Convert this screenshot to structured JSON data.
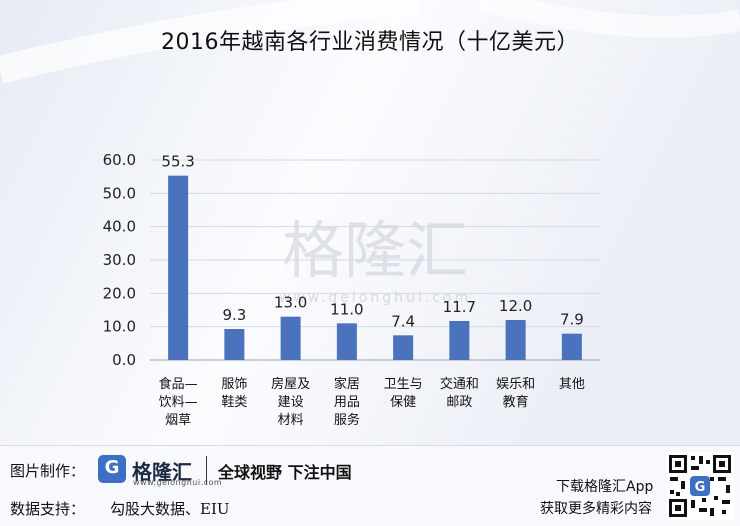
{
  "chart_data": {
    "type": "bar",
    "title": "2016年越南各行业消费情况（十亿美元）",
    "categories": [
      "食品—饮料—烟草",
      "服饰鞋类",
      "房屋及建设材料",
      "家居用品服务",
      "卫生与保健",
      "交通和邮政",
      "娱乐和教育",
      "其他"
    ],
    "category_lines": [
      [
        "食品—",
        "饮料—",
        "烟草"
      ],
      [
        "服饰",
        "鞋类"
      ],
      [
        "房屋及",
        "建设",
        "材料"
      ],
      [
        "家居",
        "用品",
        "服务"
      ],
      [
        "卫生与",
        "保健"
      ],
      [
        "交通和",
        "邮政"
      ],
      [
        "娱乐和",
        "教育"
      ],
      [
        "其他"
      ]
    ],
    "values": [
      55.3,
      9.3,
      13.0,
      11.0,
      7.4,
      11.7,
      12.0,
      7.9
    ],
    "value_labels": [
      "55.3",
      "9.3",
      "13.0",
      "11.0",
      "7.4",
      "11.7",
      "12.0",
      "7.9"
    ],
    "ylim": [
      0,
      60
    ],
    "yticks": [
      "0.0",
      "10.0",
      "20.0",
      "30.0",
      "40.0",
      "50.0",
      "60.0"
    ],
    "ytick_values": [
      0,
      10,
      20,
      30,
      40,
      50,
      60
    ],
    "grid": true,
    "legend": "none",
    "bar_color": "#4a72bd",
    "xlabel": "",
    "ylabel": ""
  },
  "watermark": {
    "name": "格隆汇",
    "url": "www.gelonghui.com"
  },
  "footer": {
    "made_label": "图片制作：",
    "logo_name": "格隆汇",
    "logo_url": "www.gelonghui.com",
    "slogan": "全球视野 下注中国",
    "source_label": "数据支持：",
    "source_value": "勾股大数据、EIU",
    "download_line1": "下载格隆汇App",
    "download_line2": "获取更多精彩内容",
    "qr_icon": "qr-code-icon"
  }
}
